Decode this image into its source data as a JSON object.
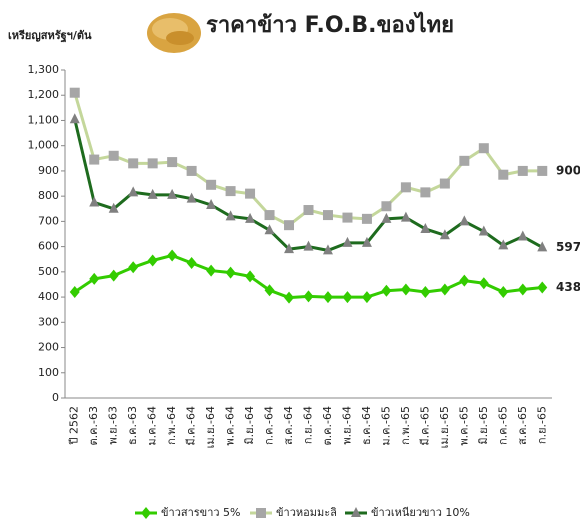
{
  "chart_data": {
    "type": "line",
    "title": "ราคาข้าว F.O.B.ของไทย",
    "y_label": "เหรียญสหรัฐฯ/ตัน",
    "categories": [
      "ปี 2562",
      "ต.ค.-63",
      "พ.ย.-63",
      "ธ.ค.-63",
      "ม.ค.-64",
      "ก.พ.-64",
      "มี.ค.-64",
      "เม.ย.-64",
      "พ.ค.-64",
      "มิ.ย.-64",
      "ก.ค.-64",
      "ส.ค.-64",
      "ก.ย.-64",
      "ต.ค.-64",
      "พ.ย.-64",
      "ธ.ค.-64",
      "ม.ค.-65",
      "ก.พ.-65",
      "มี.ค.-65",
      "เม.ย.-65",
      "พ.ค.-65",
      "มิ.ย.-65",
      "ก.ค.-65",
      "ส.ค.-65",
      "ก.ย.-65"
    ],
    "series": [
      {
        "name": "ข้าวสารขาว 5%",
        "color": "#33cc00",
        "marker": "diamond",
        "marker_color": "#33cc00",
        "values": [
          420,
          472,
          485,
          518,
          545,
          565,
          535,
          505,
          497,
          482,
          427,
          398,
          403,
          400,
          400,
          400,
          425,
          430,
          420,
          430,
          465,
          455,
          420,
          430,
          438
        ]
      },
      {
        "name": "ข้าวหอมมะลิ",
        "color": "#c4d79b",
        "marker": "square",
        "marker_color": "#a6a6a6",
        "values": [
          1210,
          945,
          960,
          930,
          930,
          935,
          900,
          845,
          820,
          810,
          725,
          685,
          745,
          725,
          715,
          710,
          760,
          835,
          815,
          850,
          940,
          990,
          885,
          900,
          900
        ]
      },
      {
        "name": "ข้าวเหนียวขาว 10%",
        "color": "#1e6b1e",
        "marker": "triangle",
        "marker_color": "#808080",
        "values": [
          1105,
          775,
          750,
          815,
          805,
          805,
          790,
          765,
          720,
          710,
          665,
          590,
          600,
          585,
          615,
          615,
          710,
          715,
          670,
          645,
          700,
          660,
          605,
          640,
          597
        ]
      }
    ],
    "ylim": [
      0,
      1300
    ],
    "yticks": [
      0,
      100,
      200,
      300,
      400,
      500,
      600,
      700,
      800,
      900,
      {
        "value": 1000,
        "label": "1,000"
      },
      {
        "value": 1100,
        "label": "1,100"
      },
      {
        "value": 1200,
        "label": "1,200"
      },
      {
        "value": 1300,
        "label": "1,300"
      }
    ],
    "grid": false,
    "legend": "bottom"
  }
}
